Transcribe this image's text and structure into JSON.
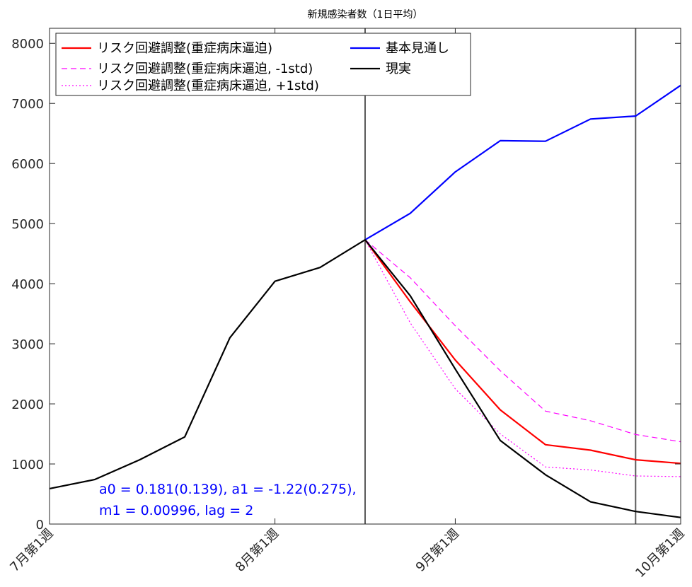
{
  "chart_data": {
    "type": "line",
    "title": "新規感染者数（1日平均）",
    "xlabel": "",
    "ylabel": "",
    "xlim": [
      0,
      14
    ],
    "ylim": [
      0,
      8250
    ],
    "y_ticks": [
      0,
      1000,
      2000,
      3000,
      4000,
      5000,
      6000,
      7000,
      8000
    ],
    "x_ticks": [
      {
        "pos": 0,
        "label": "7月第1週"
      },
      {
        "pos": 5,
        "label": "8月第1週"
      },
      {
        "pos": 9,
        "label": "9月第1週"
      },
      {
        "pos": 14,
        "label": "10月第1週"
      }
    ],
    "vlines": [
      7,
      13
    ],
    "grid": false,
    "legend_position": "top-left",
    "series": [
      {
        "name": "リスク回避調整(重症病床逼迫)",
        "color": "#ff0000",
        "dash": "solid",
        "x": [
          7,
          8,
          9,
          10,
          11,
          12,
          13,
          14
        ],
        "y": [
          4730,
          3700,
          2730,
          1900,
          1320,
          1230,
          1070,
          1010
        ]
      },
      {
        "name": "リスク回避調整(重症病床逼迫, -1std)",
        "color": "#ff00ff",
        "dash": "dashed",
        "x": [
          7,
          8,
          9,
          10,
          11,
          12,
          13,
          14
        ],
        "y": [
          4730,
          4100,
          3300,
          2550,
          1880,
          1720,
          1490,
          1370
        ]
      },
      {
        "name": "リスク回避調整(重症病床逼迫, +1std)",
        "color": "#ff00ff",
        "dash": "dotted",
        "x": [
          7,
          8,
          9,
          10,
          11,
          12,
          13,
          14
        ],
        "y": [
          4730,
          3350,
          2250,
          1500,
          950,
          900,
          800,
          790
        ]
      },
      {
        "name": "基本見通し",
        "color": "#0000ff",
        "dash": "solid",
        "x": [
          7,
          8,
          9,
          10,
          11,
          12,
          13,
          14
        ],
        "y": [
          4730,
          5170,
          5860,
          6380,
          6370,
          6740,
          6790,
          7300
        ]
      },
      {
        "name": "現実",
        "color": "#000000",
        "dash": "solid",
        "x": [
          0,
          1,
          2,
          3,
          4,
          5,
          6,
          7,
          8,
          9,
          10,
          11,
          12,
          13,
          14
        ],
        "y": [
          590,
          740,
          1070,
          1450,
          3100,
          4040,
          4270,
          4730,
          3800,
          2580,
          1390,
          820,
          370,
          210,
          110
        ]
      }
    ],
    "annotations": [
      "a0 = 0.181(0.139), a1 = -1.22(0.275),",
      "m1 = 0.00996, lag = 2"
    ],
    "annotation_color": "#0000ff"
  }
}
